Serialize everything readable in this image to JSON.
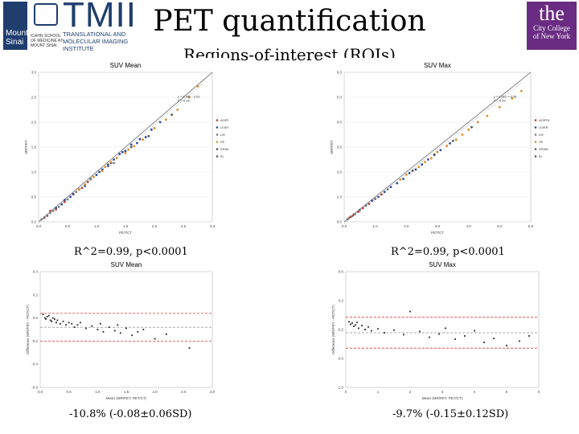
{
  "header": {
    "title": "PET quantification",
    "subtitle": "Regions-of-interest (ROIs)"
  },
  "logos": {
    "mount_sinai": "Mount Sinai",
    "sinai_small": "ICAHN SCHOOL\nOF MEDICINE AT\nMOUNT SINAI",
    "tmii_big": "TMII",
    "tmii_sub": "TRANSLATIONAL AND\nMOLECULAR IMAGING\nINSTITUTE",
    "ccny_the": "the",
    "ccny_name": "City College\nof New York"
  },
  "colors": {
    "identity_line": "#555555",
    "fit_line": "#8888aa",
    "limit_red": "#d33",
    "mean_line": "#555555",
    "aorta": "#c0392b",
    "liver": "#2c4a9a",
    "lm": "#7a7a7a",
    "sp": "#e08a1e",
    "spine": "#555555"
  },
  "captions": {
    "r2_mean": "R^2=0.99, p<0.0001",
    "r2_max": "R^2=0.99, p<0.0001",
    "ba_mean": "-10.8% (-0.08±0.06SD)",
    "ba_max": "-9.7% (-0.15±0.12SD)"
  },
  "chart_data": [
    {
      "type": "scatter",
      "title": "SUV Mean",
      "xlabel": "PET/CT",
      "ylabel": "MR/PET",
      "xlim": [
        0,
        3
      ],
      "ylim": [
        0,
        3
      ],
      "xticks": [
        "0.0",
        "0.5",
        "1.0",
        "1.5",
        "2.0",
        "2.5",
        "3.0"
      ],
      "yticks": [
        "0.0",
        "0.5",
        "1.0",
        "1.5",
        "2.0",
        "2.5",
        "3.0"
      ],
      "annotation": [
        "y = 0.99x - 0.03",
        "r² = 0.99"
      ],
      "legend": [
        "AORTA",
        "LIVER",
        "LM",
        "SP",
        "SPINE",
        "ID"
      ],
      "series": [
        {
          "name": "AORTA",
          "color_key": "aorta",
          "x": [
            0.1,
            0.15,
            0.2,
            0.3,
            0.45,
            0.6,
            0.75,
            0.85
          ],
          "y": [
            0.08,
            0.12,
            0.22,
            0.25,
            0.4,
            0.55,
            0.68,
            0.8
          ]
        },
        {
          "name": "LIVER",
          "color_key": "liver",
          "x": [
            0.3,
            0.4,
            0.45,
            0.55,
            0.6,
            0.7,
            0.8,
            0.9,
            1.0,
            1.05,
            1.1,
            1.2,
            1.25,
            1.3,
            1.4,
            1.45,
            1.5,
            1.6,
            1.7,
            1.75,
            1.85,
            1.95,
            2.1
          ],
          "y": [
            0.28,
            0.35,
            0.44,
            0.5,
            0.56,
            0.65,
            0.72,
            0.86,
            0.94,
            1.0,
            1.05,
            1.12,
            1.18,
            1.25,
            1.36,
            1.4,
            1.42,
            1.55,
            1.58,
            1.66,
            1.7,
            1.85,
            2.0
          ]
        },
        {
          "name": "LM",
          "color_key": "lm",
          "x": [
            0.05,
            0.1,
            0.15,
            0.2,
            0.25,
            0.35,
            0.5,
            0.65,
            0.9,
            1.3
          ],
          "y": [
            0.05,
            0.09,
            0.13,
            0.18,
            0.22,
            0.3,
            0.45,
            0.6,
            0.85,
            1.18
          ]
        },
        {
          "name": "SP",
          "color_key": "sp",
          "x": [
            0.7,
            0.8,
            0.95,
            1.1,
            1.15,
            1.25,
            1.35,
            1.5,
            1.55,
            1.65,
            1.8,
            2.0,
            2.2,
            2.4,
            2.6,
            2.75
          ],
          "y": [
            0.65,
            0.75,
            0.9,
            1.02,
            1.1,
            1.2,
            1.28,
            1.38,
            1.45,
            1.52,
            1.65,
            1.88,
            2.05,
            2.25,
            2.5,
            2.72
          ]
        },
        {
          "name": "SPINE",
          "color_key": "spine",
          "x": [
            1.2,
            1.6,
            1.9,
            2.3
          ],
          "y": [
            1.15,
            1.5,
            1.72,
            2.15
          ]
        }
      ]
    },
    {
      "type": "scatter",
      "title": "SUV Max",
      "xlabel": "PET/CT",
      "ylabel": "MR/PET",
      "xlim": [
        0,
        6
      ],
      "ylim": [
        0,
        6
      ],
      "xticks": [
        "0.0",
        "1.0",
        "2.0",
        "3.0",
        "4.0",
        "5.0",
        "6.0"
      ],
      "yticks": [
        "0.0",
        "1.0",
        "2.0",
        "3.0",
        "4.0",
        "5.0",
        "6.0"
      ],
      "annotation": [
        "y = 0.92x + 0.08",
        "r² = 0.99"
      ],
      "legend": [
        "AORTA",
        "LIVER",
        "LM",
        "SP",
        "SPINE",
        "ID"
      ],
      "series": [
        {
          "name": "AORTA",
          "color_key": "aorta",
          "x": [
            0.2,
            0.3,
            0.45,
            0.6,
            0.8,
            1.0,
            1.2
          ],
          "y": [
            0.2,
            0.28,
            0.4,
            0.55,
            0.72,
            0.92,
            1.1
          ]
        },
        {
          "name": "LIVER",
          "color_key": "liver",
          "x": [
            0.5,
            0.7,
            0.9,
            1.1,
            1.3,
            1.5,
            1.7,
            1.9,
            2.1,
            2.3,
            2.5,
            2.7,
            2.9,
            3.1,
            3.4
          ],
          "y": [
            0.48,
            0.66,
            0.85,
            1.0,
            1.2,
            1.4,
            1.55,
            1.72,
            1.95,
            2.1,
            2.3,
            2.5,
            2.68,
            2.88,
            3.15
          ]
        },
        {
          "name": "LM",
          "color_key": "lm",
          "x": [
            0.1,
            0.15,
            0.25,
            0.35,
            0.5,
            0.7,
            1.0,
            1.4
          ],
          "y": [
            0.1,
            0.15,
            0.22,
            0.32,
            0.46,
            0.65,
            0.92,
            1.3
          ]
        },
        {
          "name": "SP",
          "color_key": "sp",
          "x": [
            1.8,
            2.0,
            2.4,
            2.6,
            2.8,
            3.0,
            3.3,
            3.6,
            3.8,
            4.0,
            4.3,
            4.6,
            5.0,
            5.4,
            5.7
          ],
          "y": [
            1.7,
            1.9,
            2.2,
            2.4,
            2.55,
            2.8,
            3.05,
            3.3,
            3.5,
            3.7,
            4.0,
            4.25,
            4.6,
            4.95,
            5.25
          ]
        },
        {
          "name": "SPINE",
          "color_key": "spine",
          "x": [
            2.2,
            2.9,
            3.5,
            4.1
          ],
          "y": [
            2.05,
            2.7,
            3.25,
            3.8
          ]
        }
      ]
    },
    {
      "type": "scatter",
      "title": "SUV Mean",
      "xlabel": "Mean (MR/PET, PET/CT)",
      "ylabel": "Difference (MR/PET - PET/CT)",
      "xlim": [
        0,
        3
      ],
      "ylim": [
        -0.6,
        0.4
      ],
      "xticks": [
        "0.0",
        "0.5",
        "1.0",
        "1.5",
        "2.0",
        "2.5",
        "3.0"
      ],
      "yticks": [
        "-0.6",
        "-0.4",
        "-0.2",
        "0.0",
        "0.2",
        "0.4"
      ],
      "limits": {
        "upper": 0.04,
        "mean": -0.08,
        "lower": -0.2
      },
      "points": {
        "x": [
          0.05,
          0.08,
          0.1,
          0.12,
          0.15,
          0.18,
          0.2,
          0.22,
          0.25,
          0.28,
          0.3,
          0.35,
          0.4,
          0.45,
          0.5,
          0.55,
          0.6,
          0.65,
          0.7,
          0.8,
          0.9,
          1.0,
          1.05,
          1.1,
          1.2,
          1.3,
          1.35,
          1.4,
          1.5,
          1.6,
          1.7,
          1.8,
          2.0,
          2.2,
          2.6
        ],
        "y": [
          0.03,
          0.0,
          -0.01,
          0.01,
          0.02,
          -0.02,
          -0.03,
          0.0,
          -0.01,
          -0.04,
          -0.02,
          -0.05,
          -0.03,
          -0.06,
          -0.04,
          -0.05,
          -0.08,
          -0.06,
          -0.04,
          -0.09,
          -0.07,
          -0.1,
          -0.05,
          -0.12,
          -0.08,
          -0.11,
          -0.06,
          -0.13,
          -0.09,
          -0.15,
          -0.12,
          -0.1,
          -0.18,
          -0.14,
          -0.26
        ]
      }
    },
    {
      "type": "scatter",
      "title": "SUV Max",
      "xlabel": "Mean (MR/PET, PET/CT)",
      "ylabel": "Difference (MR/PET - PET/CT)",
      "xlim": [
        0,
        6
      ],
      "ylim": [
        -1.0,
        0.8
      ],
      "xticks": [
        "0",
        "1",
        "2",
        "3",
        "4",
        "5",
        "6"
      ],
      "yticks": [
        "-1.0",
        "-0.6",
        "-0.2",
        "0.2",
        "0.6"
      ],
      "limits": {
        "upper": 0.09,
        "mean": -0.15,
        "lower": -0.39
      },
      "points": {
        "x": [
          0.1,
          0.15,
          0.2,
          0.25,
          0.3,
          0.35,
          0.4,
          0.5,
          0.6,
          0.7,
          0.8,
          1.0,
          1.2,
          1.5,
          1.8,
          2.0,
          2.3,
          2.6,
          2.9,
          3.1,
          3.4,
          3.7,
          4.0,
          4.3,
          4.6,
          5.0,
          5.4,
          5.7
        ],
        "y": [
          0.02,
          -0.02,
          0.0,
          -0.05,
          -0.03,
          0.01,
          -0.08,
          -0.04,
          -0.1,
          -0.06,
          -0.12,
          -0.09,
          -0.15,
          -0.11,
          -0.18,
          0.18,
          -0.13,
          -0.22,
          -0.17,
          -0.08,
          -0.25,
          -0.2,
          -0.12,
          -0.3,
          -0.24,
          -0.35,
          -0.28,
          -0.2
        ]
      }
    }
  ]
}
